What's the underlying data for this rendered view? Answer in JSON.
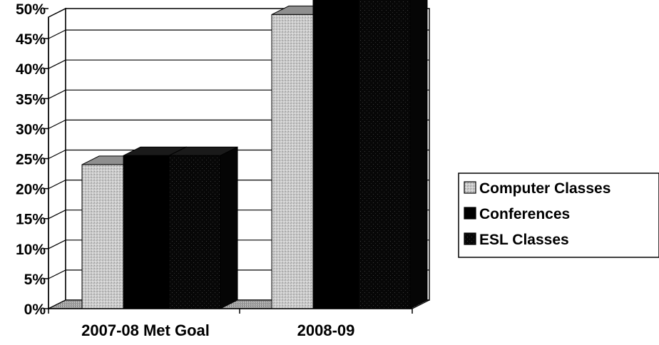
{
  "chart_data": {
    "type": "bar",
    "categories": [
      "2007-08 Met Goal",
      "2008-09"
    ],
    "series": [
      {
        "name": "Computer Classes",
        "values": [
          24,
          49
        ]
      },
      {
        "name": "Conferences",
        "values": [
          25.5,
          51.5
        ]
      },
      {
        "name": "ESL Classes",
        "values": [
          25.5,
          51.5
        ]
      }
    ],
    "ylim": [
      0,
      50
    ],
    "yticks": [
      "0%",
      "5%",
      "10%",
      "15%",
      "20%",
      "25%",
      "30%",
      "35%",
      "40%",
      "45%",
      "50%"
    ],
    "grid": true,
    "legend": "right",
    "colors": {
      "Computer Classes": "#c4c4c4",
      "Conferences": "#000000",
      "ESL Classes": "#0f0f0f",
      "floor": "#9a9a9a"
    }
  }
}
